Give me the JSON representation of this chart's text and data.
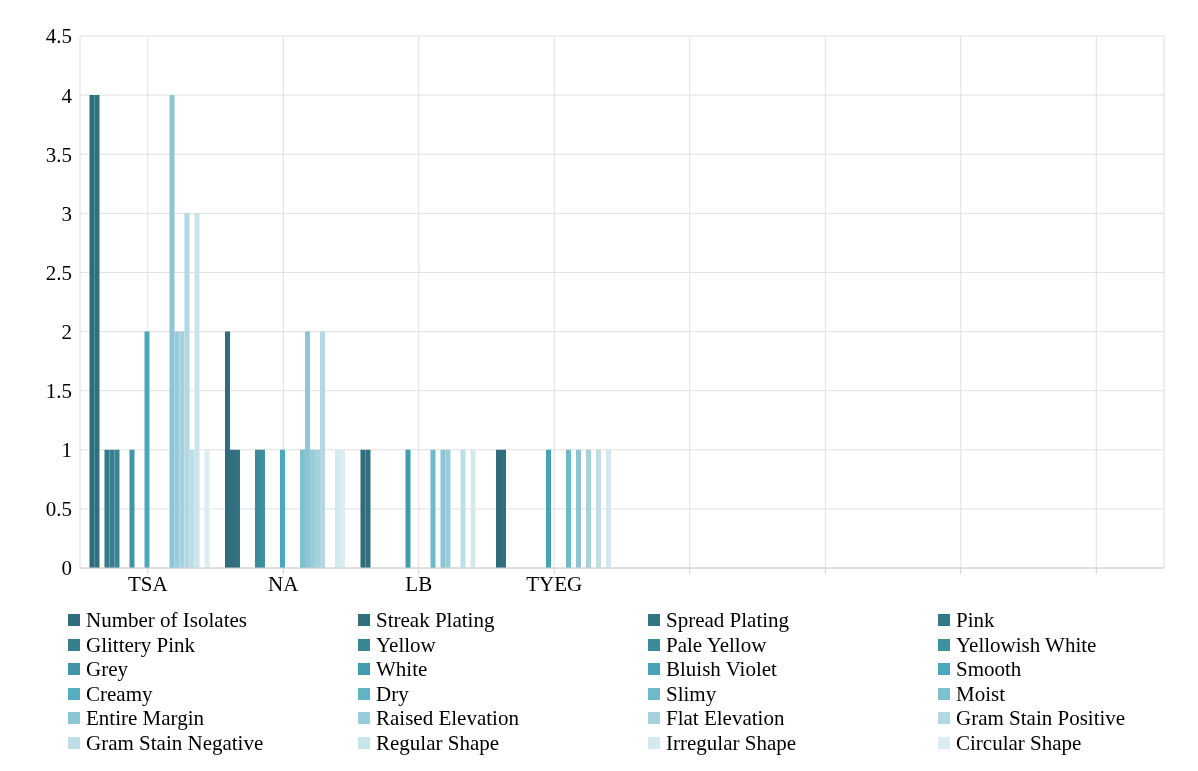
{
  "chart_data": {
    "type": "bar",
    "categories": [
      "TSA",
      "NA",
      "LB",
      "TYEG",
      null,
      null,
      null,
      null
    ],
    "ylim": [
      0,
      4.5
    ],
    "yticks": [
      0,
      0.5,
      1,
      1.5,
      2,
      2.5,
      3,
      3.5,
      4,
      4.5
    ],
    "grid": true,
    "legend": "bottom",
    "series": [
      {
        "name": "Number of Isolates",
        "color": "#2f6d7c",
        "values": [
          4,
          2,
          1,
          1,
          null,
          null,
          null,
          null
        ]
      },
      {
        "name": "Streak Plating",
        "color": "#316f7f",
        "values": [
          4,
          1,
          1,
          1,
          null,
          null,
          null,
          null
        ]
      },
      {
        "name": "Spread Plating",
        "color": "#337483",
        "values": [
          0,
          1,
          0,
          0,
          null,
          null,
          null,
          null
        ]
      },
      {
        "name": "Pink",
        "color": "#357a89",
        "values": [
          1,
          0,
          0,
          0,
          null,
          null,
          null,
          null
        ]
      },
      {
        "name": "Glittery Pink",
        "color": "#377f8f",
        "values": [
          1,
          0,
          0,
          0,
          null,
          null,
          null,
          null
        ]
      },
      {
        "name": "Yellow",
        "color": "#398594",
        "values": [
          1,
          0,
          0,
          0,
          null,
          null,
          null,
          null
        ]
      },
      {
        "name": "Pale Yellow",
        "color": "#3b8a9a",
        "values": [
          0,
          1,
          0,
          0,
          null,
          null,
          null,
          null
        ]
      },
      {
        "name": "Yellowish White",
        "color": "#3d90a0",
        "values": [
          0,
          1,
          0,
          0,
          null,
          null,
          null,
          null
        ]
      },
      {
        "name": "Grey",
        "color": "#4096a7",
        "values": [
          1,
          0,
          0,
          0,
          null,
          null,
          null,
          null
        ]
      },
      {
        "name": "White",
        "color": "#439cad",
        "values": [
          0,
          0,
          1,
          0,
          null,
          null,
          null,
          null
        ]
      },
      {
        "name": "Bluish Violet",
        "color": "#47a2b4",
        "values": [
          0,
          0,
          0,
          1,
          null,
          null,
          null,
          null
        ]
      },
      {
        "name": "Smooth",
        "color": "#4ba8ba",
        "values": [
          2,
          1,
          0,
          0,
          null,
          null,
          null,
          null
        ]
      },
      {
        "name": "Creamy",
        "color": "#55adc0",
        "values": [
          0,
          0,
          0,
          0,
          null,
          null,
          null,
          null
        ]
      },
      {
        "name": "Dry",
        "color": "#62b3c5",
        "values": [
          0,
          0,
          0,
          0,
          null,
          null,
          null,
          null
        ]
      },
      {
        "name": "Slimy",
        "color": "#70b9ca",
        "values": [
          0,
          0,
          1,
          1,
          null,
          null,
          null,
          null
        ]
      },
      {
        "name": "Moist",
        "color": "#7ec0cf",
        "values": [
          0,
          1,
          0,
          0,
          null,
          null,
          null,
          null
        ]
      },
      {
        "name": "Entire Margin",
        "color": "#8cc6d4",
        "values": [
          4,
          2,
          1,
          1,
          null,
          null,
          null,
          null
        ]
      },
      {
        "name": "Raised Elevation",
        "color": "#99ccda",
        "values": [
          2,
          1,
          1,
          0,
          null,
          null,
          null,
          null
        ]
      },
      {
        "name": "Flat Elevation",
        "color": "#a6d2de",
        "values": [
          2,
          1,
          0,
          1,
          null,
          null,
          null,
          null
        ]
      },
      {
        "name": "Gram Stain Positive",
        "color": "#b2d8e3",
        "values": [
          3,
          2,
          0,
          0,
          null,
          null,
          null,
          null
        ]
      },
      {
        "name": "Gram Stain Negative",
        "color": "#bedee7",
        "values": [
          1,
          0,
          1,
          1,
          null,
          null,
          null,
          null
        ]
      },
      {
        "name": "Regular Shape",
        "color": "#c9e4eb",
        "values": [
          3,
          0,
          0,
          0,
          null,
          null,
          null,
          null
        ]
      },
      {
        "name": "Irregular Shape",
        "color": "#d3e9ef",
        "values": [
          0,
          1,
          1,
          1,
          null,
          null,
          null,
          null
        ]
      },
      {
        "name": "Circular Shape",
        "color": "#dcedf2",
        "values": [
          1,
          1,
          0,
          0,
          null,
          null,
          null,
          null
        ]
      }
    ]
  }
}
